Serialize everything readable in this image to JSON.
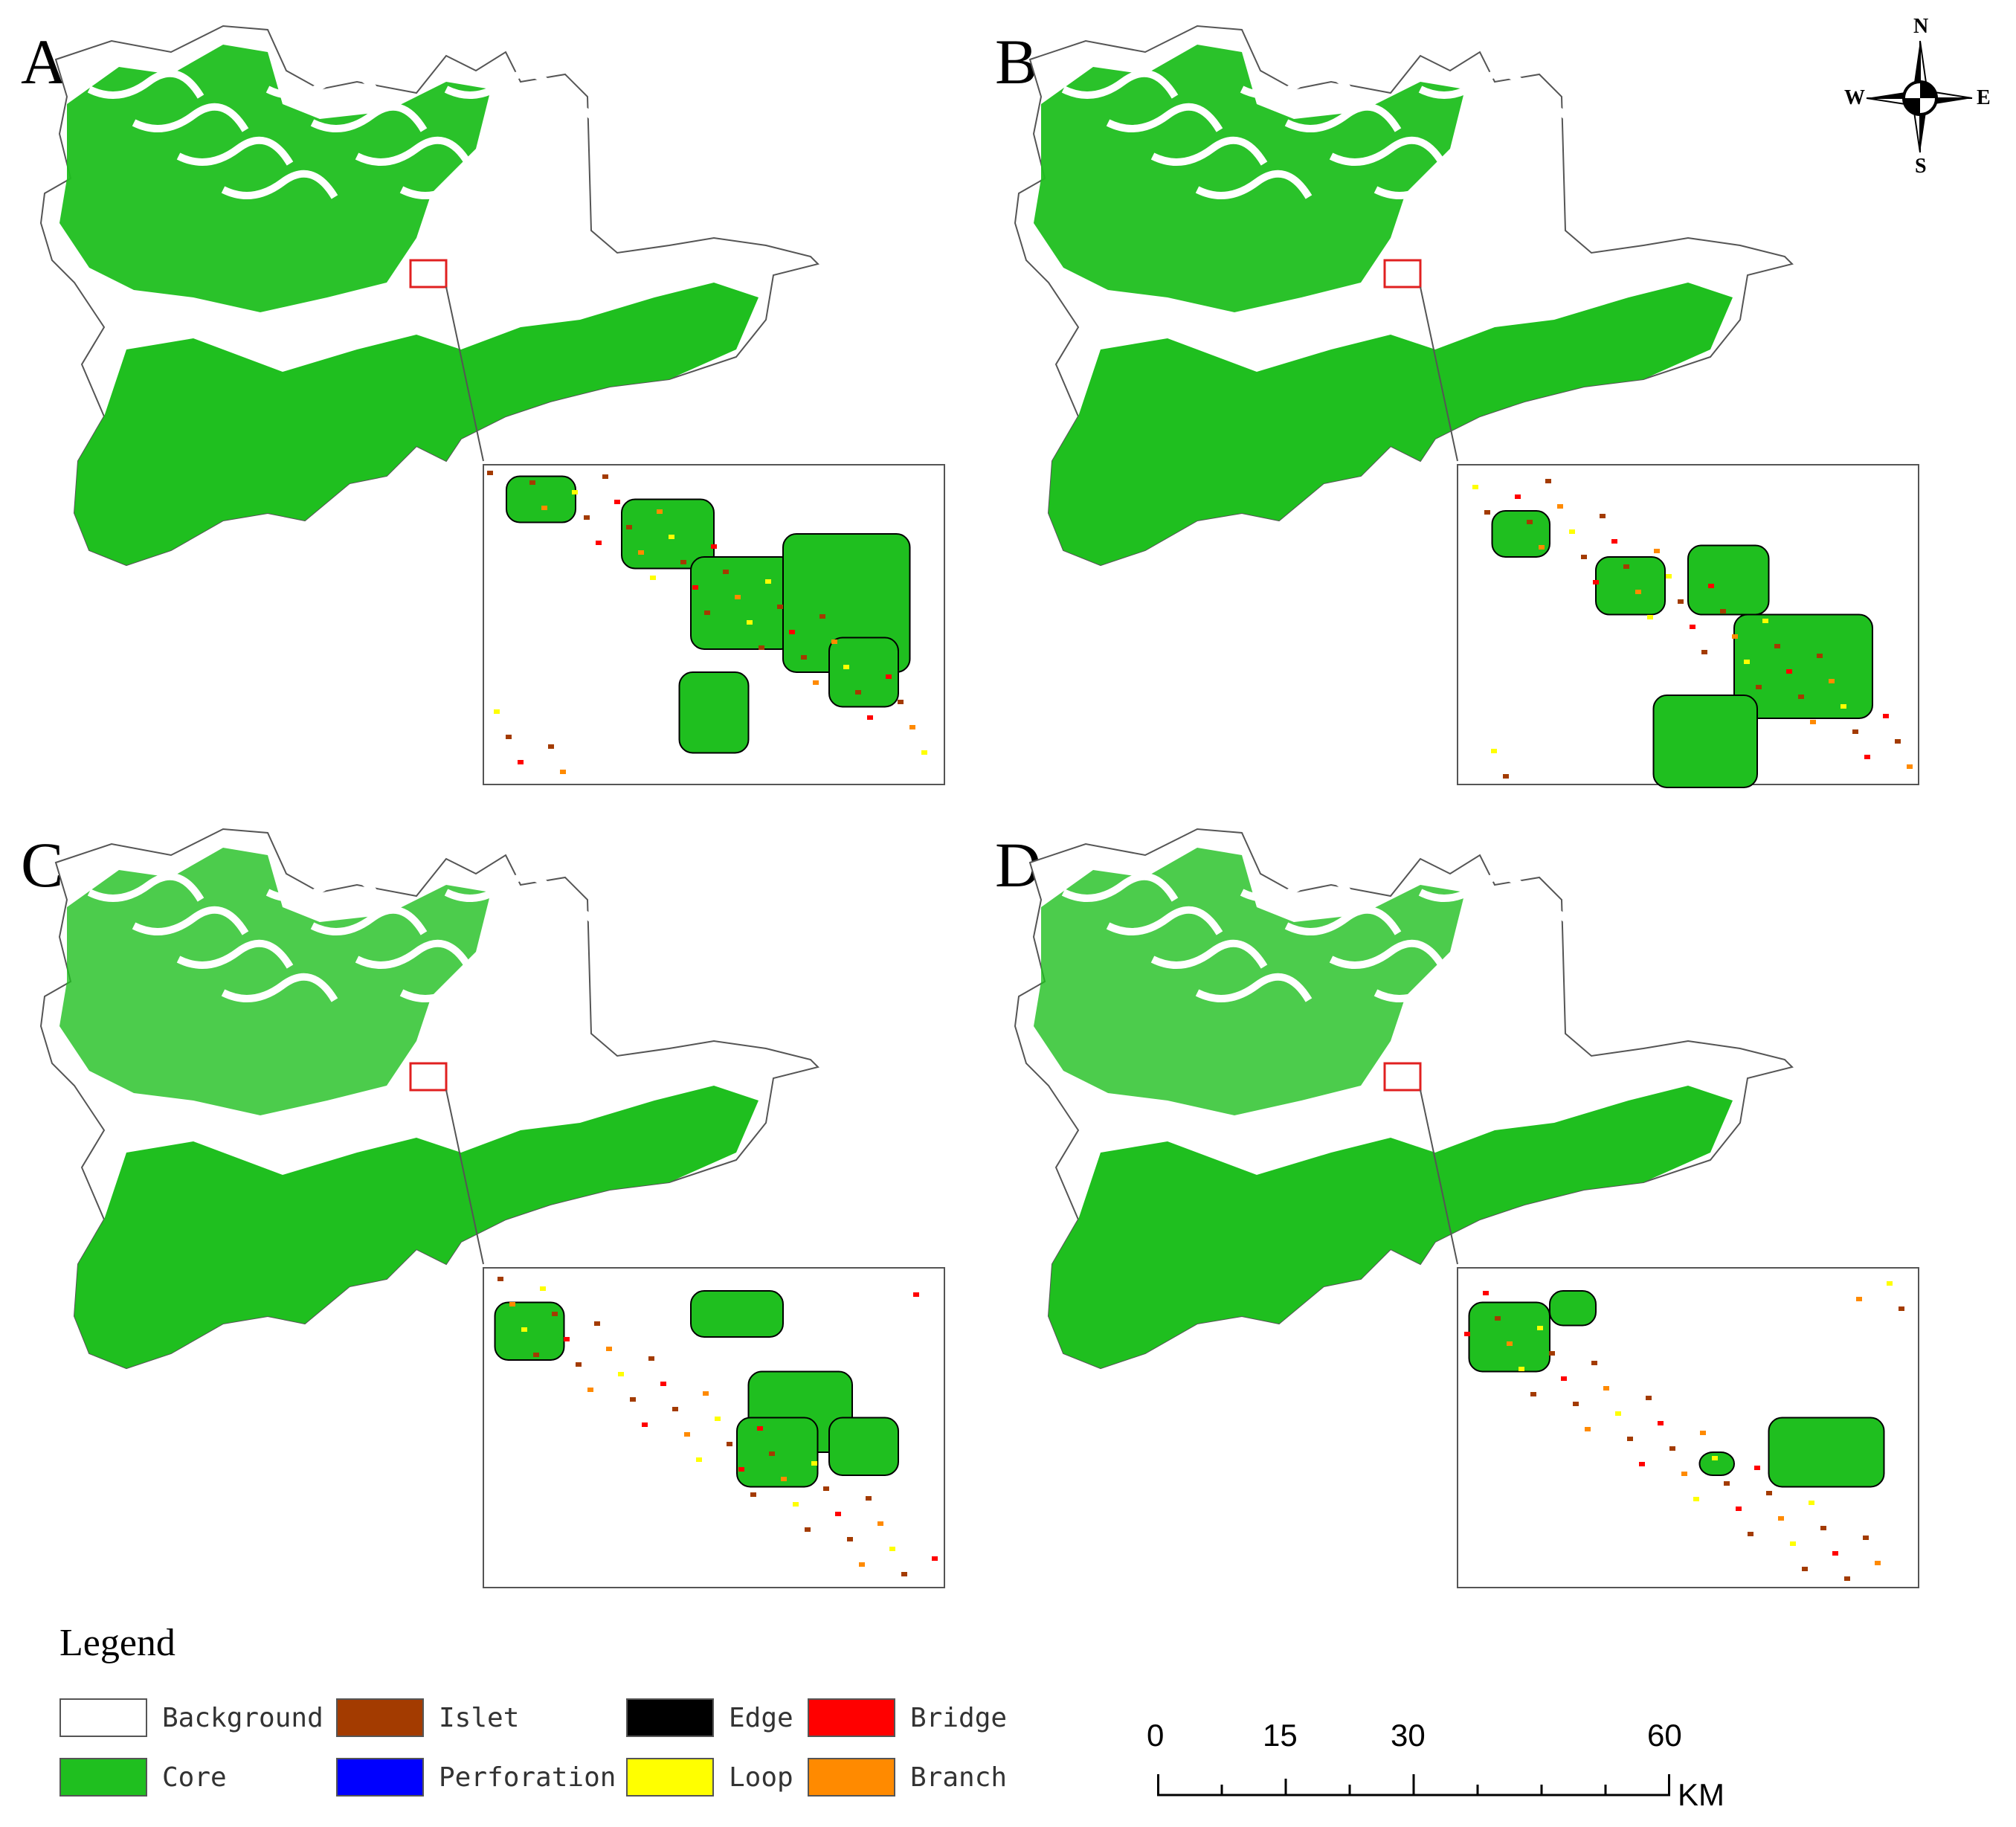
{
  "panels": [
    {
      "label": "A"
    },
    {
      "label": "B"
    },
    {
      "label": "C"
    },
    {
      "label": "D"
    }
  ],
  "compass": {
    "north": "N",
    "south": "S",
    "east": "E",
    "west": "W"
  },
  "legend": {
    "title": "Legend",
    "items": [
      {
        "name": "Background",
        "color": "#ffffff"
      },
      {
        "name": "Core",
        "color": "#1fbf1f"
      },
      {
        "name": "Islet",
        "color": "#a33b00"
      },
      {
        "name": "Perforation",
        "color": "#0000ff"
      },
      {
        "name": "Edge",
        "color": "#000000"
      },
      {
        "name": "Loop",
        "color": "#ffff00"
      },
      {
        "name": "Bridge",
        "color": "#ff0000"
      },
      {
        "name": "Branch",
        "color": "#ff8a00"
      }
    ]
  },
  "scale_bar": {
    "ticks": [
      "0",
      "15",
      "30",
      "60"
    ],
    "unit": "KM"
  },
  "colors": {
    "core": "#1fbf1f",
    "outline": "#555555",
    "inset_box": "#e02020"
  }
}
